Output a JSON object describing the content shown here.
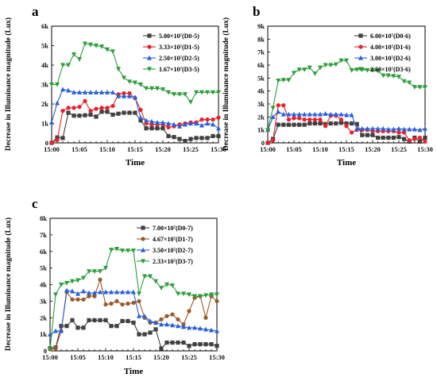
{
  "chart_data": [
    {
      "panel": "a",
      "type": "line",
      "xlabel": "Time",
      "ylabel": "Decrease in Illuminance magnitude (Lux)",
      "x_ticks": [
        "15:00",
        "15:05",
        "15:10",
        "15:15",
        "15:20",
        "15:25",
        "15:30"
      ],
      "xlim": [
        0,
        30
      ],
      "ylim": [
        0,
        6000
      ],
      "y_ticks": [
        "0",
        "1k",
        "2k",
        "3k",
        "4k",
        "5k",
        "6k"
      ],
      "y_tick_values": [
        0,
        1000,
        2000,
        3000,
        4000,
        5000,
        6000
      ],
      "legend_position": "top-right",
      "series": [
        {
          "name": "5.00×10⁷(D0-5)",
          "color": "#404040",
          "marker": "square",
          "x": [
            0,
            1,
            2,
            3,
            4,
            5,
            6,
            7,
            8,
            9,
            10,
            11,
            12,
            13,
            14,
            15,
            16,
            17,
            18,
            19,
            20,
            21,
            22,
            23,
            24,
            25,
            26,
            27,
            28,
            29,
            30
          ],
          "y": [
            0,
            280,
            250,
            1550,
            1400,
            1400,
            1420,
            1450,
            1350,
            1600,
            1600,
            1450,
            1500,
            1550,
            1550,
            1550,
            1150,
            750,
            750,
            750,
            750,
            350,
            300,
            200,
            100,
            200,
            250,
            250,
            250,
            350,
            350
          ]
        },
        {
          "name": "3.33×10⁷(D1-5)",
          "color": "#e8202a",
          "marker": "circle",
          "x": [
            0,
            1,
            2,
            3,
            4,
            5,
            6,
            7,
            8,
            9,
            10,
            11,
            12,
            13,
            14,
            15,
            16,
            17,
            18,
            19,
            20,
            21,
            22,
            23,
            24,
            25,
            26,
            27,
            28,
            29,
            30
          ],
          "y": [
            0,
            150,
            1650,
            1800,
            1800,
            1850,
            2150,
            1650,
            1750,
            1800,
            1800,
            1900,
            2500,
            2550,
            2550,
            2300,
            1700,
            1000,
            950,
            950,
            950,
            800,
            850,
            950,
            1000,
            1050,
            1050,
            1200,
            1200,
            1200,
            1300
          ]
        },
        {
          "name": "2.50×10⁷(D2-5)",
          "color": "#2a5fd6",
          "marker": "triangle-up",
          "x": [
            0,
            1,
            2,
            3,
            4,
            5,
            6,
            7,
            8,
            9,
            10,
            11,
            12,
            13,
            14,
            15,
            16,
            17,
            18,
            19,
            20,
            21,
            22,
            23,
            24,
            25,
            26,
            27,
            28,
            29,
            30
          ],
          "y": [
            1050,
            2050,
            2750,
            2700,
            2600,
            2600,
            2600,
            2600,
            2600,
            2600,
            2600,
            2600,
            2400,
            2400,
            2400,
            2350,
            1300,
            1150,
            1100,
            1050,
            1050,
            1000,
            950,
            850,
            950,
            1000,
            1000,
            900,
            1000,
            950,
            750
          ]
        },
        {
          "name": "1.67×10⁷(D3-5)",
          "color": "#2e9e3c",
          "marker": "triangle-down",
          "x": [
            0,
            1,
            2,
            3,
            4,
            5,
            6,
            7,
            8,
            9,
            10,
            11,
            12,
            13,
            14,
            15,
            16,
            17,
            18,
            19,
            20,
            21,
            22,
            23,
            24,
            25,
            26,
            27,
            28,
            29,
            30
          ],
          "y": [
            3000,
            3000,
            4000,
            4000,
            4550,
            4300,
            5100,
            5050,
            5000,
            4950,
            4800,
            4700,
            3800,
            3350,
            3150,
            3100,
            3000,
            2800,
            2800,
            2800,
            2750,
            2600,
            2500,
            2500,
            2500,
            2100,
            2600,
            2600,
            2600,
            2600,
            2600
          ]
        }
      ]
    },
    {
      "panel": "b",
      "type": "line",
      "xlabel": "Time",
      "ylabel": "Decrease in Illuminance magnitude (Lux)",
      "x_ticks": [
        "15:00",
        "15:05",
        "15:10",
        "15:15",
        "15:20",
        "15:25",
        "15:30"
      ],
      "xlim": [
        0,
        30
      ],
      "ylim": [
        0,
        9000
      ],
      "y_ticks": [
        "0",
        "1k",
        "2k",
        "3k",
        "4k",
        "5k",
        "6k",
        "7k",
        "8k",
        "9k"
      ],
      "y_tick_values": [
        0,
        1000,
        2000,
        3000,
        4000,
        5000,
        6000,
        7000,
        8000,
        9000
      ],
      "legend_position": "top-right",
      "series": [
        {
          "name": "6.00×10⁷(D0-6)",
          "color": "#404040",
          "marker": "square",
          "x": [
            0,
            1,
            2,
            3,
            4,
            5,
            6,
            7,
            8,
            9,
            10,
            11,
            12,
            13,
            14,
            15,
            16,
            17,
            18,
            19,
            20,
            21,
            22,
            23,
            24,
            25,
            26,
            27,
            28,
            29,
            30
          ],
          "y": [
            0,
            300,
            1400,
            1400,
            1400,
            1400,
            1400,
            1400,
            1500,
            1500,
            1500,
            1450,
            1500,
            1500,
            1550,
            1500,
            1500,
            1450,
            600,
            600,
            600,
            400,
            400,
            400,
            400,
            450,
            300,
            100,
            400,
            100,
            400
          ]
        },
        {
          "name": "4.00×10⁷(D1-6)",
          "color": "#e8202a",
          "marker": "circle",
          "x": [
            0,
            1,
            2,
            3,
            4,
            5,
            6,
            7,
            8,
            9,
            10,
            11,
            12,
            13,
            14,
            15,
            16,
            17,
            18,
            19,
            20,
            21,
            22,
            23,
            24,
            25,
            26,
            27,
            28,
            29,
            30
          ],
          "y": [
            0,
            200,
            2900,
            2900,
            1800,
            1900,
            1900,
            1800,
            1800,
            1800,
            1800,
            1300,
            2100,
            2100,
            1800,
            1300,
            800,
            1000,
            1000,
            1000,
            900,
            900,
            900,
            900,
            900,
            800,
            800,
            200,
            300,
            400,
            100
          ]
        },
        {
          "name": "3.00×10⁷(D2-6)",
          "color": "#2a5fd6",
          "marker": "triangle-up",
          "x": [
            0,
            1,
            2,
            3,
            4,
            5,
            6,
            7,
            8,
            9,
            10,
            11,
            12,
            13,
            14,
            15,
            16,
            17,
            18,
            19,
            20,
            21,
            22,
            23,
            24,
            25,
            26,
            27,
            28,
            29,
            30
          ],
          "y": [
            1000,
            2000,
            2400,
            2200,
            2200,
            2200,
            2200,
            2200,
            2200,
            2200,
            2200,
            2250,
            2200,
            2200,
            2200,
            2150,
            2150,
            1100,
            1100,
            1100,
            1100,
            1100,
            1100,
            1050,
            1050,
            1100,
            1050,
            1050,
            1050,
            1000,
            1100
          ]
        },
        {
          "name": "2.00×10⁷(D3-6)",
          "color": "#2e9e3c",
          "marker": "triangle-down",
          "x": [
            0,
            1,
            2,
            3,
            4,
            5,
            6,
            7,
            8,
            9,
            10,
            11,
            12,
            13,
            14,
            15,
            16,
            17,
            18,
            19,
            20,
            21,
            22,
            23,
            24,
            25,
            26,
            27,
            28,
            29,
            30
          ],
          "y": [
            1000,
            2700,
            4800,
            4850,
            4850,
            5400,
            5650,
            5650,
            5800,
            5350,
            5800,
            6000,
            6000,
            6050,
            6350,
            6350,
            5600,
            5650,
            5650,
            5600,
            5600,
            5550,
            5200,
            5200,
            5150,
            5100,
            4750,
            4650,
            4300,
            4300,
            4300
          ]
        }
      ]
    },
    {
      "panel": "c",
      "type": "line",
      "xlabel": "Time",
      "ylabel": "Decrease in Illuminance magnitude (Lux)",
      "x_ticks": [
        "15:00",
        "15:05",
        "15:10",
        "15:15",
        "15:20",
        "15:25",
        "15:30"
      ],
      "xlim": [
        0,
        30
      ],
      "ylim": [
        0,
        8000
      ],
      "y_ticks": [
        "0",
        "1k",
        "2k",
        "3k",
        "4k",
        "5k",
        "6k",
        "7k",
        "8k"
      ],
      "y_tick_values": [
        0,
        1000,
        2000,
        3000,
        4000,
        5000,
        6000,
        7000,
        8000
      ],
      "legend_position": "top-right",
      "series": [
        {
          "name": "7.00×10⁷(D0-7)",
          "color": "#404040",
          "marker": "square",
          "x": [
            0,
            1,
            2,
            3,
            4,
            5,
            6,
            7,
            8,
            9,
            10,
            11,
            12,
            13,
            14,
            15,
            16,
            17,
            18,
            19,
            20,
            21,
            22,
            23,
            24,
            25,
            26,
            27,
            28,
            29,
            30
          ],
          "y": [
            150,
            200,
            1500,
            1500,
            1850,
            1400,
            1400,
            1850,
            1850,
            1850,
            1850,
            1500,
            1500,
            1800,
            1800,
            1700,
            1000,
            1000,
            1100,
            1300,
            150,
            500,
            500,
            500,
            500,
            300,
            400,
            400,
            400,
            400,
            300
          ]
        },
        {
          "name": "4.67×10⁷(D1-7)",
          "color": "#9a5a28",
          "marker": "circle",
          "x": [
            0,
            1,
            2,
            3,
            4,
            5,
            6,
            7,
            8,
            9,
            10,
            11,
            12,
            13,
            14,
            15,
            16,
            17,
            18,
            19,
            20,
            21,
            22,
            23,
            24,
            25,
            26,
            27,
            28,
            29,
            30
          ],
          "y": [
            100,
            150,
            1200,
            3550,
            3100,
            3100,
            3100,
            3300,
            3300,
            4300,
            2800,
            2850,
            3000,
            2800,
            2850,
            2900,
            3000,
            2000,
            1700,
            1700,
            1900,
            2100,
            2200,
            1900,
            1600,
            2400,
            3200,
            3300,
            2000,
            3300,
            3000
          ]
        },
        {
          "name": "3.50×10⁷(D2-7)",
          "color": "#2a5fd6",
          "marker": "triangle-up",
          "x": [
            0,
            1,
            2,
            3,
            4,
            5,
            6,
            7,
            8,
            9,
            10,
            11,
            12,
            13,
            14,
            15,
            16,
            17,
            18,
            19,
            20,
            21,
            22,
            23,
            24,
            25,
            26,
            27,
            28,
            29,
            30
          ],
          "y": [
            1000,
            1200,
            1200,
            3650,
            3600,
            3450,
            3600,
            3500,
            3500,
            3550,
            3550,
            3550,
            3550,
            3550,
            3550,
            3550,
            2100,
            2100,
            1800,
            1700,
            1600,
            1600,
            1550,
            1500,
            1450,
            1400,
            1400,
            1350,
            1300,
            1250,
            1200
          ]
        },
        {
          "name": "2.33×10⁷(D3-7)",
          "color": "#2e9e3c",
          "marker": "triangle-down",
          "x": [
            0,
            1,
            2,
            3,
            4,
            5,
            6,
            7,
            8,
            9,
            10,
            11,
            12,
            13,
            14,
            15,
            16,
            17,
            18,
            19,
            20,
            21,
            22,
            23,
            24,
            25,
            26,
            27,
            28,
            29,
            30
          ],
          "y": [
            100,
            3400,
            4000,
            4100,
            4200,
            4250,
            4400,
            4800,
            4800,
            4800,
            5000,
            6100,
            6150,
            6050,
            6050,
            6050,
            3450,
            4500,
            4500,
            4200,
            3800,
            4000,
            3950,
            3450,
            3450,
            3400,
            3300,
            3300,
            3350,
            3400,
            3400
          ]
        }
      ]
    }
  ]
}
